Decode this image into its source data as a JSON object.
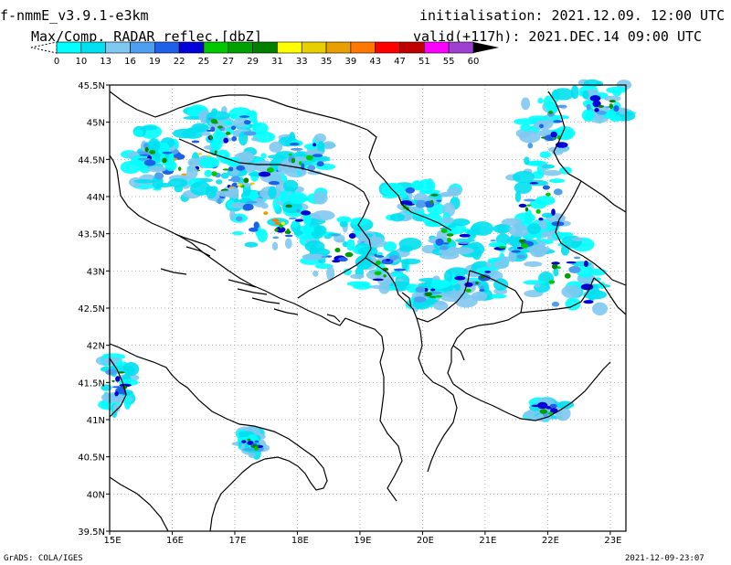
{
  "header": {
    "model": "f-nmmE_v3.9.1-e3km",
    "product": "Max/Comp. RADAR reflec.[dbZ]",
    "initialisation": "initialisation: 2021.12.09. 12:00 UTC",
    "valid": "valid(+117h): 2021.DEC.14 09:00 UTC"
  },
  "legend": {
    "labels": [
      "0",
      "10",
      "13",
      "16",
      "19",
      "22",
      "25",
      "27",
      "29",
      "31",
      "33",
      "35",
      "39",
      "43",
      "47",
      "51",
      "55",
      "60"
    ],
    "colors": [
      "#00ffff",
      "#00e0f0",
      "#7fc8f0",
      "#4f9ff0",
      "#2060e8",
      "#0000d8",
      "#00c800",
      "#00a000",
      "#008000",
      "#ffff00",
      "#e8d000",
      "#e8a000",
      "#ff7800",
      "#ff0000",
      "#c00000",
      "#ff00ff",
      "#a040d0"
    ]
  },
  "map": {
    "lon_labels": [
      "15E",
      "16E",
      "17E",
      "18E",
      "19E",
      "20E",
      "21E",
      "22E",
      "23E"
    ],
    "lat_labels": [
      "45.5N",
      "45N",
      "44.5N",
      "44N",
      "43.5N",
      "43N",
      "42.5N",
      "42N",
      "41.5N",
      "41N",
      "40.5N",
      "40N",
      "39.5N"
    ]
  },
  "footer": {
    "credit": "GrADS: COLA/IGES",
    "timestamp": "2021-12-09-23:07"
  }
}
